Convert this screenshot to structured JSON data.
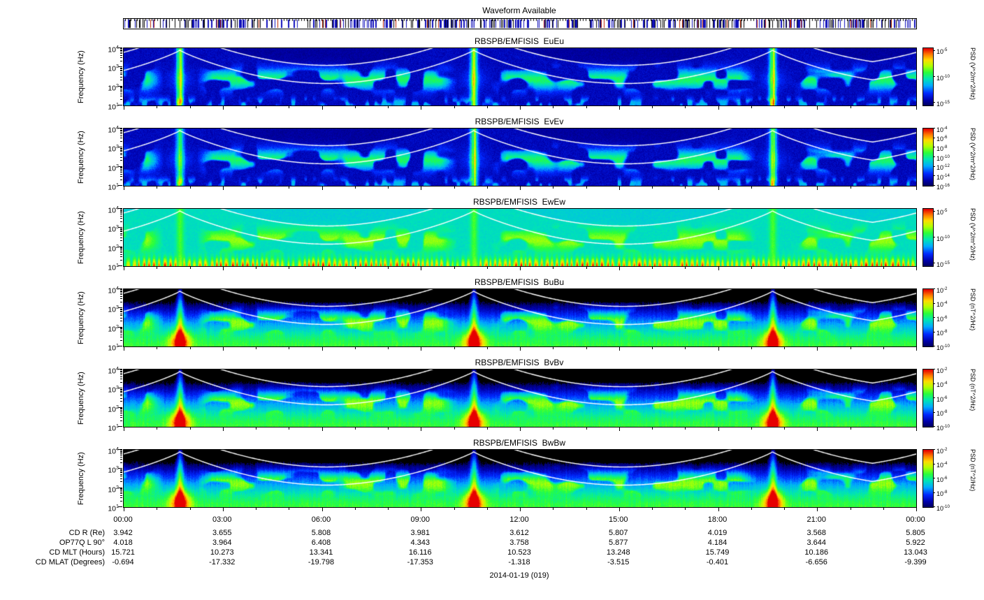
{
  "figure": {
    "waveform_title": "Waveform Available",
    "date_label": "2014-01-19 (019)"
  },
  "chart_data": {
    "type": "heatmap",
    "description": "Six 24-hour log-frequency spectrogram panels (RBSPB/EMFISIS wave power spectral density) with rainbow colormap, white electron cyclotron frequency overlay curves, waveform-availability bar on top, time axis and spacecraft ephemeris table below.",
    "x_axis": {
      "ticks": [
        "00:00",
        "03:00",
        "06:00",
        "09:00",
        "12:00",
        "15:00",
        "18:00",
        "21:00",
        "00:00"
      ],
      "range_hours": [
        0,
        24
      ]
    },
    "y_axis": {
      "label": "Frequency (Hz)",
      "scale": "log",
      "ticks": [
        "10^4",
        "10^3",
        "10^2",
        "10^1"
      ],
      "range_hz": [
        10,
        10000
      ]
    },
    "panels": [
      {
        "short": "EuEu",
        "title": "RBSPB/EMFISIS  EuEu",
        "kind": "E",
        "colorbar": {
          "label": "PSD (V^2/m^2/Hz)",
          "ticks": [
            "10^-5",
            "10^-10",
            "10^-15"
          ],
          "tick_exps": [
            -5,
            -10,
            -15
          ],
          "range_exp": [
            -15.5,
            -4.5
          ]
        }
      },
      {
        "short": "EvEv",
        "title": "RBSPB/EMFISIS  EvEv",
        "kind": "E",
        "colorbar": {
          "label": "PSD (V^2/m^2/Hz)",
          "ticks": [
            "10^-4",
            "10^-6",
            "10^-8",
            "10^-10",
            "10^-12",
            "10^-14",
            "10^-16"
          ],
          "tick_exps": [
            -4,
            -6,
            -8,
            -10,
            -12,
            -14,
            -16
          ],
          "range_exp": [
            -16,
            -4
          ]
        }
      },
      {
        "short": "EwEw",
        "title": "RBSPB/EMFISIS  EwEw",
        "kind": "Ew",
        "colorbar": {
          "label": "PSD (V^2/m^2/Hz)",
          "ticks": [
            "10^-5",
            "10^-10",
            "10^-15"
          ],
          "tick_exps": [
            -5,
            -10,
            -15
          ],
          "range_exp": [
            -15.5,
            -4.5
          ]
        }
      },
      {
        "short": "BuBu",
        "title": "RBSPB/EMFISIS  BuBu",
        "kind": "B",
        "colorbar": {
          "label": "PSD (nT^2/Hz)",
          "ticks": [
            "10^-2",
            "10^-4",
            "10^-6",
            "10^-8",
            "10^-10"
          ],
          "tick_exps": [
            -2,
            -4,
            -6,
            -8,
            -10
          ],
          "range_exp": [
            -10,
            -2
          ]
        }
      },
      {
        "short": "BvBv",
        "title": "RBSPB/EMFISIS  BvBv",
        "kind": "B",
        "colorbar": {
          "label": "PSD (nT^2/Hz)",
          "ticks": [
            "10^-2",
            "10^-4",
            "10^-6",
            "10^-8",
            "10^-10"
          ],
          "tick_exps": [
            -2,
            -4,
            -6,
            -8,
            -10
          ],
          "range_exp": [
            -10,
            -2
          ]
        }
      },
      {
        "short": "BwBw",
        "title": "RBSPB/EMFISIS  BwBw",
        "kind": "B",
        "colorbar": {
          "label": "PSD (nT^2/Hz)",
          "ticks": [
            "10^-2",
            "10^-4",
            "10^-6",
            "10^-8",
            "10^-10"
          ],
          "tick_exps": [
            -2,
            -4,
            -6,
            -8,
            -10
          ],
          "range_exp": [
            -10,
            -2
          ]
        }
      }
    ],
    "overlay_curves": {
      "color": "#ffffff",
      "description": "electron cyclotron frequency lines, peaking at perigee",
      "perigee_hours": [
        1.7,
        10.6,
        19.65
      ]
    },
    "colormap_hint": [
      "#00005a",
      "#0000aa",
      "#0028ff",
      "#00aaff",
      "#00e6b4",
      "#28ff3c",
      "#b4ff00",
      "#ffdc00",
      "#ff7800",
      "#e60000"
    ],
    "ephemeris": {
      "rows": [
        {
          "label": "CD R (Re)",
          "values": [
            "3.942",
            "3.655",
            "5.808",
            "3.981",
            "3.612",
            "5.807",
            "4.019",
            "3.568",
            "5.805"
          ]
        },
        {
          "label": "OP77Q L 90°",
          "values": [
            "4.018",
            "3.964",
            "6.408",
            "4.343",
            "3.758",
            "5.877",
            "4.184",
            "3.644",
            "5.922"
          ]
        },
        {
          "label": "CD MLT (Hours)",
          "values": [
            "15.721",
            "10.273",
            "13.341",
            "16.116",
            "10.523",
            "13.248",
            "15.749",
            "10.186",
            "13.043"
          ]
        },
        {
          "label": "CD MLAT (Degrees)",
          "values": [
            "-0.694",
            "-17.332",
            "-19.798",
            "-17.353",
            "-1.318",
            "-3.515",
            "-0.401",
            "-6.656",
            "-9.399"
          ]
        }
      ]
    }
  }
}
